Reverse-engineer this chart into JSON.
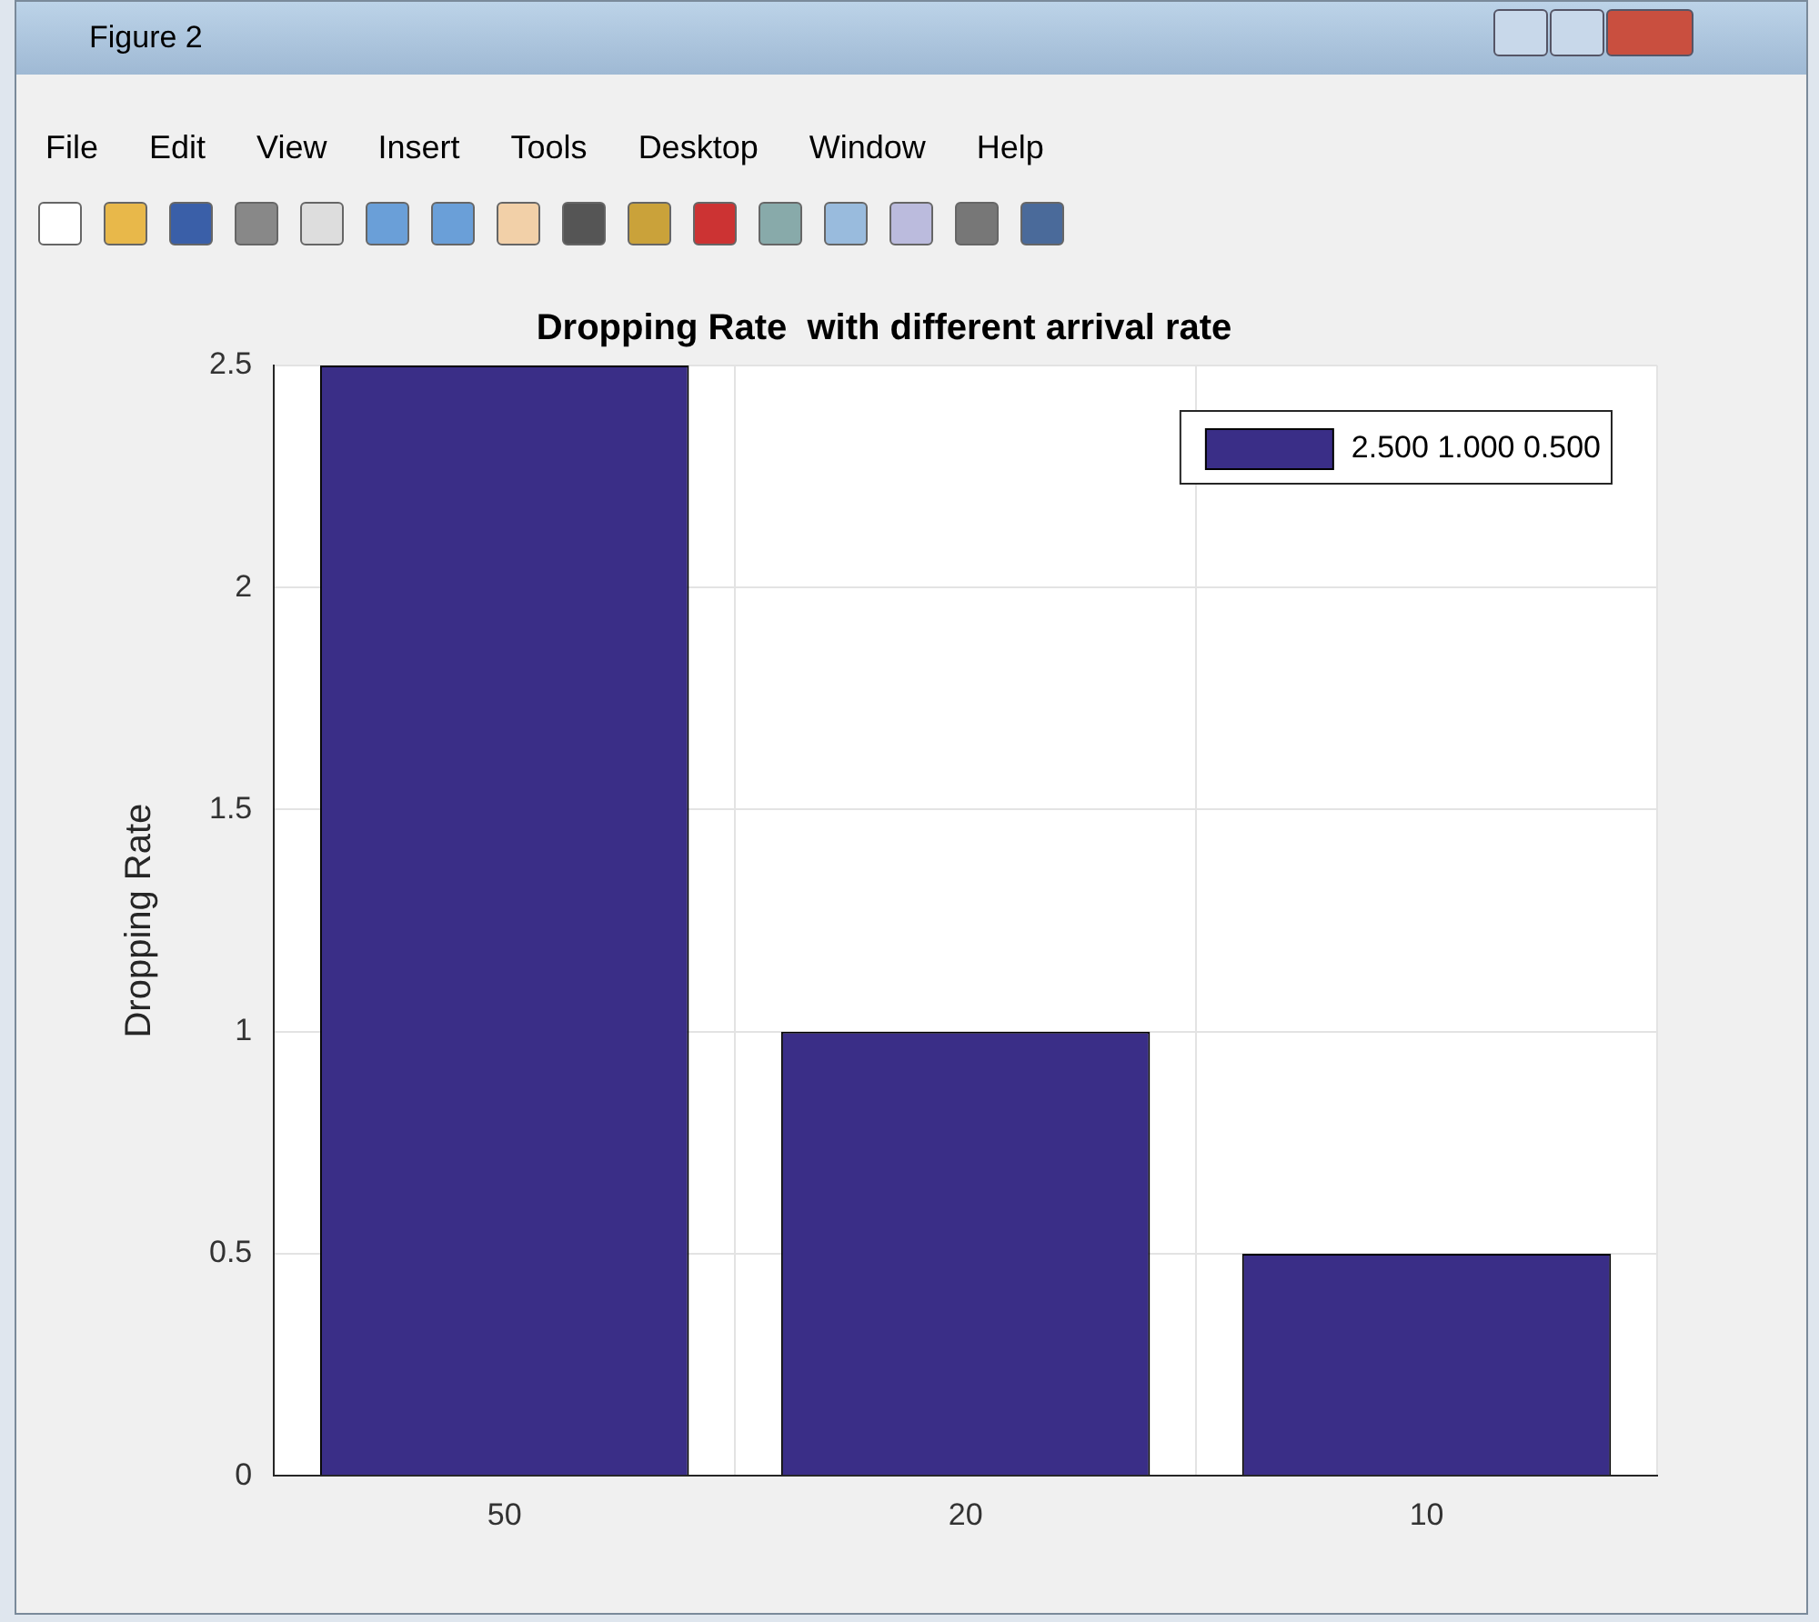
{
  "chart_data": {
    "type": "bar",
    "title": "Dropping Rate  with different arrival rate",
    "ylabel": "Dropping Rate",
    "categories": [
      "50",
      "20",
      "10"
    ],
    "series": [
      {
        "name": "2.500 1.000 0.500",
        "color": "#3a2e87",
        "values": [
          2.5,
          1,
          0.5
        ]
      }
    ],
    "ylim": [
      0,
      2.5
    ],
    "yticks": [
      0,
      0.5,
      1,
      1.5,
      2,
      2.5
    ],
    "grid": true,
    "legend": "top right",
    "annotations": [
      "Figure 2",
      "File",
      "Edit",
      "View",
      "Insert",
      "Tools",
      "Desktop",
      "Window",
      "Help"
    ]
  }
}
